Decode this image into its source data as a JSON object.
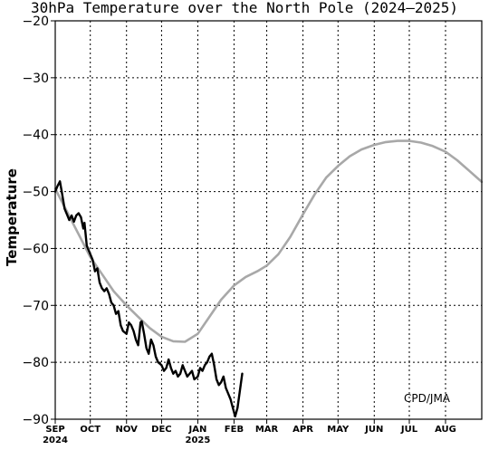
{
  "chart_data": {
    "type": "line",
    "title": "30hPa Temperature over the North Pole (2024–2025)",
    "ylabel": "Temperature",
    "ylim": [
      -90,
      -20
    ],
    "yticks": [
      -90,
      -80,
      -70,
      -60,
      -50,
      -40,
      -30,
      -20
    ],
    "ytick_labels": [
      "−90",
      "−80",
      "−70",
      "−60",
      "−50",
      "−40",
      "−30",
      "−20"
    ],
    "xlim": [
      "2024-09-01",
      "2025-09-01"
    ],
    "months": [
      {
        "date": "2024-09-01",
        "label": "SEP",
        "year_label": "2024"
      },
      {
        "date": "2024-10-01",
        "label": "OCT",
        "year_label": ""
      },
      {
        "date": "2024-11-01",
        "label": "NOV",
        "year_label": ""
      },
      {
        "date": "2024-12-01",
        "label": "DEC",
        "year_label": ""
      },
      {
        "date": "2025-01-01",
        "label": "JAN",
        "year_label": "2025"
      },
      {
        "date": "2025-02-01",
        "label": "FEB",
        "year_label": ""
      },
      {
        "date": "2025-03-01",
        "label": "MAR",
        "year_label": ""
      },
      {
        "date": "2025-04-01",
        "label": "APR",
        "year_label": ""
      },
      {
        "date": "2025-05-01",
        "label": "MAY",
        "year_label": ""
      },
      {
        "date": "2025-06-01",
        "label": "JUN",
        "year_label": ""
      },
      {
        "date": "2025-07-01",
        "label": "JUL",
        "year_label": ""
      },
      {
        "date": "2025-08-01",
        "label": "AUG",
        "year_label": ""
      }
    ],
    "series": [
      {
        "color": "#a8a8a8",
        "points": [
          [
            "2024-09-01",
            -49.5
          ],
          [
            "2024-09-11",
            -53.5
          ],
          [
            "2024-09-21",
            -57.5
          ],
          [
            "2024-10-01",
            -61.5
          ],
          [
            "2024-10-11",
            -64.5
          ],
          [
            "2024-10-21",
            -67.5
          ],
          [
            "2024-11-01",
            -70.0
          ],
          [
            "2024-11-11",
            -72.0
          ],
          [
            "2024-11-21",
            -74.0
          ],
          [
            "2024-12-01",
            -75.5
          ],
          [
            "2024-12-11",
            -76.3
          ],
          [
            "2024-12-21",
            -76.4
          ],
          [
            "2025-01-01",
            -75.0
          ],
          [
            "2025-01-11",
            -72.0
          ],
          [
            "2025-01-21",
            -69.0
          ],
          [
            "2025-02-01",
            -66.5
          ],
          [
            "2025-02-11",
            -65.0
          ],
          [
            "2025-02-21",
            -64.0
          ],
          [
            "2025-03-01",
            -63.0
          ],
          [
            "2025-03-11",
            -61.0
          ],
          [
            "2025-03-21",
            -58.0
          ],
          [
            "2025-04-01",
            -54.0
          ],
          [
            "2025-04-11",
            -50.5
          ],
          [
            "2025-04-21",
            -47.5
          ],
          [
            "2025-05-01",
            -45.5
          ],
          [
            "2025-05-11",
            -43.8
          ],
          [
            "2025-05-21",
            -42.6
          ],
          [
            "2025-06-01",
            -41.8
          ],
          [
            "2025-06-11",
            -41.3
          ],
          [
            "2025-06-21",
            -41.1
          ],
          [
            "2025-07-01",
            -41.1
          ],
          [
            "2025-07-11",
            -41.4
          ],
          [
            "2025-07-21",
            -42.0
          ],
          [
            "2025-08-01",
            -43.0
          ],
          [
            "2025-08-11",
            -44.5
          ],
          [
            "2025-08-21",
            -46.3
          ],
          [
            "2025-09-01",
            -48.3
          ]
        ]
      },
      {
        "color": "#000000",
        "points": [
          [
            "2024-09-01",
            -50.0
          ],
          [
            "2024-09-03",
            -49.0
          ],
          [
            "2024-09-05",
            -48.2
          ],
          [
            "2024-09-07",
            -50.5
          ],
          [
            "2024-09-09",
            -53.0
          ],
          [
            "2024-09-11",
            -54.0
          ],
          [
            "2024-09-13",
            -55.0
          ],
          [
            "2024-09-15",
            -54.2
          ],
          [
            "2024-09-17",
            -55.3
          ],
          [
            "2024-09-19",
            -54.2
          ],
          [
            "2024-09-21",
            -53.8
          ],
          [
            "2024-09-23",
            -54.5
          ],
          [
            "2024-09-25",
            -56.5
          ],
          [
            "2024-09-26",
            -55.5
          ],
          [
            "2024-09-28",
            -59.5
          ],
          [
            "2024-10-01",
            -61.0
          ],
          [
            "2024-10-03",
            -62.0
          ],
          [
            "2024-10-05",
            -64.0
          ],
          [
            "2024-10-07",
            -63.5
          ],
          [
            "2024-10-09",
            -66.0
          ],
          [
            "2024-10-11",
            -67.0
          ],
          [
            "2024-10-13",
            -67.5
          ],
          [
            "2024-10-15",
            -67.0
          ],
          [
            "2024-10-17",
            -68.0
          ],
          [
            "2024-10-19",
            -69.5
          ],
          [
            "2024-10-21",
            -70.0
          ],
          [
            "2024-10-23",
            -71.5
          ],
          [
            "2024-10-25",
            -71.0
          ],
          [
            "2024-10-27",
            -73.5
          ],
          [
            "2024-10-29",
            -74.5
          ],
          [
            "2024-11-01",
            -75.0
          ],
          [
            "2024-11-03",
            -73.0
          ],
          [
            "2024-11-05",
            -73.5
          ],
          [
            "2024-11-07",
            -74.5
          ],
          [
            "2024-11-09",
            -76.0
          ],
          [
            "2024-11-11",
            -77.0
          ],
          [
            "2024-11-13",
            -73.0
          ],
          [
            "2024-11-14",
            -72.8
          ],
          [
            "2024-11-16",
            -75.0
          ],
          [
            "2024-11-18",
            -77.5
          ],
          [
            "2024-11-20",
            -78.5
          ],
          [
            "2024-11-22",
            -76.0
          ],
          [
            "2024-11-24",
            -77.0
          ],
          [
            "2024-11-26",
            -79.0
          ],
          [
            "2024-11-28",
            -80.0
          ],
          [
            "2024-12-01",
            -80.5
          ],
          [
            "2024-12-03",
            -81.5
          ],
          [
            "2024-12-05",
            -81.0
          ],
          [
            "2024-12-07",
            -79.5
          ],
          [
            "2024-12-09",
            -81.0
          ],
          [
            "2024-12-11",
            -82.0
          ],
          [
            "2024-12-13",
            -81.5
          ],
          [
            "2024-12-15",
            -82.5
          ],
          [
            "2024-12-17",
            -82.0
          ],
          [
            "2024-12-19",
            -80.5
          ],
          [
            "2024-12-21",
            -81.5
          ],
          [
            "2024-12-23",
            -82.5
          ],
          [
            "2024-12-25",
            -82.0
          ],
          [
            "2024-12-27",
            -81.5
          ],
          [
            "2024-12-29",
            -83.0
          ],
          [
            "2025-01-01",
            -82.5
          ],
          [
            "2025-01-03",
            -81.0
          ],
          [
            "2025-01-05",
            -81.5
          ],
          [
            "2025-01-07",
            -80.5
          ],
          [
            "2025-01-09",
            -80.0
          ],
          [
            "2025-01-11",
            -79.0
          ],
          [
            "2025-01-13",
            -78.5
          ],
          [
            "2025-01-15",
            -80.5
          ],
          [
            "2025-01-17",
            -83.0
          ],
          [
            "2025-01-19",
            -84.0
          ],
          [
            "2025-01-21",
            -83.5
          ],
          [
            "2025-01-23",
            -82.5
          ],
          [
            "2025-01-25",
            -84.5
          ],
          [
            "2025-01-27",
            -85.5
          ],
          [
            "2025-01-29",
            -86.5
          ],
          [
            "2025-01-31",
            -88.0
          ],
          [
            "2025-02-02",
            -89.5
          ],
          [
            "2025-02-04",
            -88.0
          ],
          [
            "2025-02-06",
            -85.0
          ],
          [
            "2025-02-08",
            -82.0
          ]
        ]
      }
    ],
    "annotations": [
      {
        "text": "CPD/JMA",
        "position": "bottom-right"
      }
    ],
    "grid": true,
    "legend": "none"
  }
}
